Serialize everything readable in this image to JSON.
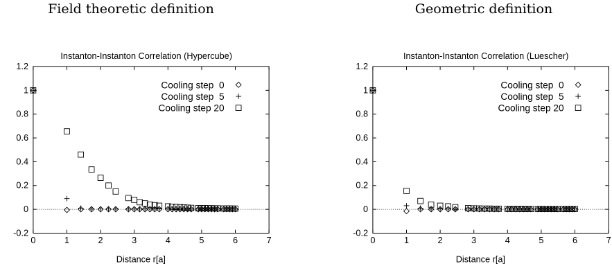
{
  "figure": {
    "left_caption": "Field theoretic definition",
    "right_caption": "Geometric definition"
  },
  "chart_data": [
    {
      "type": "scatter",
      "title": "Instanton-Instanton Correlation (Hypercube)",
      "xlabel": "Distance r[a]",
      "ylabel": "",
      "xlim": [
        0,
        7
      ],
      "ylim": [
        -0.2,
        1.2
      ],
      "x_ticks": [
        "0",
        "1",
        "2",
        "3",
        "4",
        "5",
        "6",
        "7"
      ],
      "y_ticks": [
        "-0.2",
        "0",
        "0.2",
        "0.4",
        "0.6",
        "0.8",
        "1",
        "1.2"
      ],
      "grid": false,
      "zero_line": true,
      "legend_position": "top-right",
      "series": [
        {
          "name": "Cooling step  0",
          "marker": "diamond",
          "x": [
            0,
            1,
            1.414,
            1.732,
            2,
            2.236,
            2.449,
            2.828,
            3,
            3.162,
            3.317,
            3.464,
            3.606,
            3.742,
            4,
            4.123,
            4.243,
            4.359,
            4.472,
            4.583,
            4.69,
            4.899,
            5,
            5.099,
            5.196,
            5.292,
            5.385,
            5.477,
            5.657,
            5.745,
            5.831,
            5.916,
            6
          ],
          "y": [
            1,
            -0.005,
            0.001,
            0.001,
            0.001,
            0.001,
            0.001,
            0.001,
            0.001,
            0.001,
            0.001,
            0.001,
            0.001,
            0.001,
            0.001,
            0.001,
            0.001,
            0.001,
            0.001,
            0.001,
            0.001,
            0.001,
            0.001,
            0.001,
            0.001,
            0.001,
            0.001,
            0.001,
            0.001,
            0.001,
            0.001,
            0.001,
            0.001
          ]
        },
        {
          "name": "Cooling step  5",
          "marker": "plus",
          "x": [
            0,
            1,
            1.414,
            1.732,
            2,
            2.236,
            2.449,
            2.828,
            3,
            3.162,
            3.317,
            3.464,
            3.606,
            3.742,
            4,
            4.123,
            4.243,
            4.359,
            4.472,
            4.583,
            4.69,
            4.899,
            5,
            5.099,
            5.196,
            5.292,
            5.385,
            5.477,
            5.657,
            5.745,
            5.831,
            5.916,
            6
          ],
          "y": [
            1,
            0.09,
            0.01,
            0.005,
            0.004,
            0.003,
            0.003,
            0.003,
            0.003,
            0.003,
            0.003,
            0.003,
            0.003,
            0.003,
            0.003,
            0.003,
            0.003,
            0.003,
            0.003,
            0.003,
            0.003,
            0.003,
            0.003,
            0.003,
            0.003,
            0.003,
            0.003,
            0.003,
            0.003,
            0.003,
            0.003,
            0.003,
            0.003
          ]
        },
        {
          "name": "Cooling step 20",
          "marker": "square",
          "x": [
            0,
            1,
            1.414,
            1.732,
            2,
            2.236,
            2.449,
            2.828,
            3,
            3.162,
            3.317,
            3.464,
            3.606,
            3.742,
            4,
            4.123,
            4.243,
            4.359,
            4.472,
            4.583,
            4.69,
            4.899,
            5,
            5.099,
            5.196,
            5.292,
            5.385,
            5.477,
            5.657,
            5.745,
            5.831,
            5.916,
            6
          ],
          "y": [
            1,
            0.655,
            0.46,
            0.335,
            0.265,
            0.2,
            0.15,
            0.095,
            0.08,
            0.06,
            0.05,
            0.04,
            0.035,
            0.03,
            0.025,
            0.022,
            0.02,
            0.018,
            0.016,
            0.014,
            0.012,
            0.01,
            0.01,
            0.01,
            0.009,
            0.009,
            0.008,
            0.008,
            0.007,
            0.007,
            0.007,
            0.006,
            0.006
          ]
        }
      ]
    },
    {
      "type": "scatter",
      "title": "Instanton-Instanton Correlation (Luescher)",
      "xlabel": "Distance r[a]",
      "ylabel": "",
      "xlim": [
        0,
        7
      ],
      "ylim": [
        -0.2,
        1.2
      ],
      "x_ticks": [
        "0",
        "1",
        "2",
        "3",
        "4",
        "5",
        "6",
        "7"
      ],
      "y_ticks": [
        "-0.2",
        "0",
        "0.2",
        "0.4",
        "0.6",
        "0.8",
        "1",
        "1.2"
      ],
      "grid": false,
      "zero_line": true,
      "legend_position": "top-right",
      "series": [
        {
          "name": "Cooling step  0",
          "marker": "diamond",
          "x": [
            0,
            1,
            1.414,
            1.732,
            2,
            2.236,
            2.449,
            2.828,
            3,
            3.162,
            3.317,
            3.464,
            3.606,
            3.742,
            4,
            4.123,
            4.243,
            4.359,
            4.472,
            4.583,
            4.69,
            4.899,
            5,
            5.099,
            5.196,
            5.292,
            5.385,
            5.477,
            5.657,
            5.745,
            5.831,
            5.916,
            6
          ],
          "y": [
            1,
            -0.015,
            0.001,
            0.001,
            0.001,
            0.001,
            0.001,
            0.001,
            0.001,
            0.001,
            0.001,
            0.001,
            0.001,
            0.001,
            0.001,
            0.001,
            0.001,
            0.001,
            0.001,
            0.001,
            0.001,
            0.001,
            0.001,
            0.001,
            0.001,
            0.001,
            0.001,
            0.001,
            0.001,
            0.001,
            0.001,
            0.001,
            0.001
          ]
        },
        {
          "name": "Cooling step  5",
          "marker": "plus",
          "x": [
            0,
            1,
            1.414,
            1.732,
            2,
            2.236,
            2.449,
            2.828,
            3,
            3.162,
            3.317,
            3.464,
            3.606,
            3.742,
            4,
            4.123,
            4.243,
            4.359,
            4.472,
            4.583,
            4.69,
            4.899,
            5,
            5.099,
            5.196,
            5.292,
            5.385,
            5.477,
            5.657,
            5.745,
            5.831,
            5.916,
            6
          ],
          "y": [
            1,
            0.03,
            0.01,
            0.005,
            0.004,
            0.003,
            0.003,
            0.003,
            0.003,
            0.003,
            0.003,
            0.003,
            0.003,
            0.003,
            0.003,
            0.003,
            0.003,
            0.003,
            0.003,
            0.003,
            0.003,
            0.003,
            0.003,
            0.003,
            0.003,
            0.003,
            0.003,
            0.003,
            0.003,
            0.003,
            0.003,
            0.003,
            0.003
          ]
        },
        {
          "name": "Cooling step 20",
          "marker": "square",
          "x": [
            0,
            1,
            1.414,
            1.732,
            2,
            2.236,
            2.449,
            2.828,
            3,
            3.162,
            3.317,
            3.464,
            3.606,
            3.742,
            4,
            4.123,
            4.243,
            4.359,
            4.472,
            4.583,
            4.69,
            4.899,
            5,
            5.099,
            5.196,
            5.292,
            5.385,
            5.477,
            5.657,
            5.745,
            5.831,
            5.916,
            6
          ],
          "y": [
            1,
            0.155,
            0.07,
            0.04,
            0.03,
            0.025,
            0.018,
            0.01,
            0.008,
            0.007,
            0.006,
            0.006,
            0.005,
            0.005,
            0.004,
            0.004,
            0.004,
            0.004,
            0.003,
            0.003,
            0.003,
            0.003,
            0.003,
            0.003,
            0.003,
            0.003,
            0.003,
            0.003,
            0.003,
            0.003,
            0.003,
            0.003,
            0.003
          ]
        }
      ]
    }
  ]
}
